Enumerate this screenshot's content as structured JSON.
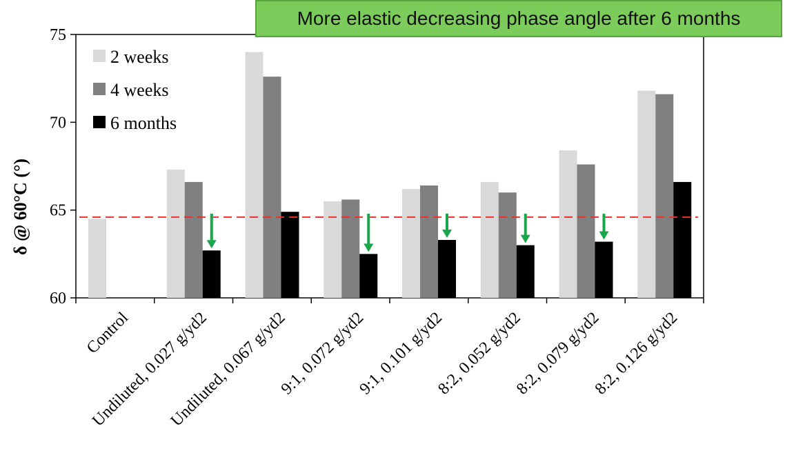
{
  "annotation": "More elastic decreasing phase angle after 6 months",
  "colors": {
    "two_weeks": "#d9d9d9",
    "four_weeks": "#808080",
    "six_months": "#000000",
    "reference_line": "#e8312f",
    "arrow": "#1aa64a",
    "annotation_bg": "#7ccc5b"
  },
  "chart_data": {
    "type": "bar",
    "ylabel": "δ @ 60°C (°)",
    "ylim": [
      60,
      75
    ],
    "yticks": [
      60,
      65,
      70,
      75
    ],
    "categories": [
      "Control",
      "Undiluted, 0.027 g/yd2",
      "Undiluted, 0.067 g/yd2",
      "9:1, 0.072 g/yd2",
      "9:1, 0.101 g/yd2",
      "8:2, 0.052 g/yd2",
      "8:2, 0.079 g/yd2",
      "8:2, 0.126 g/yd2"
    ],
    "series": [
      {
        "name": "2 weeks",
        "values": [
          64.5,
          67.3,
          74.0,
          65.5,
          66.2,
          66.6,
          68.4,
          71.8
        ]
      },
      {
        "name": "4 weeks",
        "values": [
          null,
          66.6,
          72.6,
          65.6,
          66.4,
          66.0,
          67.6,
          71.6
        ]
      },
      {
        "name": "6 months",
        "values": [
          null,
          62.7,
          64.9,
          62.5,
          63.3,
          63.0,
          63.2,
          66.6
        ]
      }
    ],
    "reference_line": {
      "value": 64.6,
      "style": "dashed"
    },
    "arrows_on_categories": [
      1,
      3,
      4,
      5,
      6
    ],
    "legend_position": "top-left",
    "grid": false
  }
}
